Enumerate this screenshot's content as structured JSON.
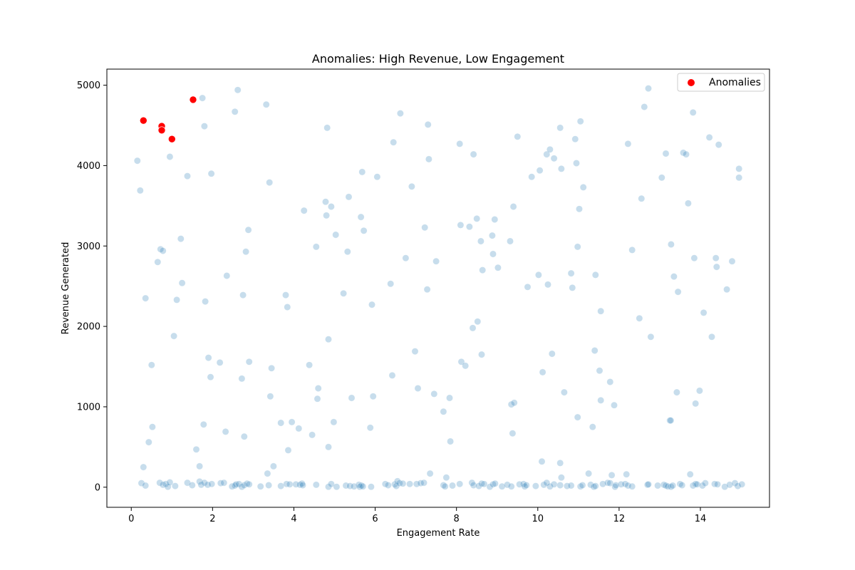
{
  "chart_data": {
    "type": "scatter",
    "title": "Anomalies: High Revenue, Low Engagement",
    "xlabel": "Engagement Rate",
    "ylabel": "Revenue Generated",
    "xlim": [
      -0.6,
      15.7
    ],
    "ylim": [
      -250,
      5200
    ],
    "xticks": [
      0,
      2,
      4,
      6,
      8,
      10,
      12,
      14
    ],
    "yticks": [
      0,
      1000,
      2000,
      3000,
      4000,
      5000
    ],
    "grid": false,
    "legend": {
      "position": "top-right",
      "entries": [
        "Anomalies"
      ]
    },
    "colors": {
      "background_series": "#1f77b4",
      "anomaly_series": "#ff0000"
    },
    "series": [
      {
        "role": "background",
        "opacity": 0.25,
        "points": [
          [
            0.15,
            4060
          ],
          [
            0.22,
            3690
          ],
          [
            0.35,
            2350
          ],
          [
            0.5,
            1520
          ],
          [
            0.52,
            750
          ],
          [
            0.43,
            560
          ],
          [
            0.3,
            250
          ],
          [
            0.65,
            2800
          ],
          [
            0.72,
            2960
          ],
          [
            0.78,
            2940
          ],
          [
            0.95,
            4110
          ],
          [
            1.05,
            1880
          ],
          [
            1.12,
            2330
          ],
          [
            1.22,
            3090
          ],
          [
            1.25,
            2540
          ],
          [
            1.38,
            3870
          ],
          [
            1.6,
            470
          ],
          [
            1.68,
            260
          ],
          [
            1.75,
            4840
          ],
          [
            1.8,
            4490
          ],
          [
            1.78,
            780
          ],
          [
            1.82,
            2310
          ],
          [
            1.9,
            1610
          ],
          [
            1.95,
            1370
          ],
          [
            1.97,
            3900
          ],
          [
            2.18,
            1550
          ],
          [
            2.32,
            690
          ],
          [
            2.35,
            2630
          ],
          [
            2.55,
            4670
          ],
          [
            2.62,
            4940
          ],
          [
            2.72,
            1350
          ],
          [
            2.75,
            2390
          ],
          [
            2.78,
            630
          ],
          [
            2.82,
            2930
          ],
          [
            2.88,
            3200
          ],
          [
            2.9,
            1560
          ],
          [
            3.32,
            4760
          ],
          [
            3.35,
            170
          ],
          [
            3.4,
            3790
          ],
          [
            3.42,
            1130
          ],
          [
            3.45,
            1480
          ],
          [
            3.5,
            260
          ],
          [
            3.68,
            800
          ],
          [
            3.8,
            2390
          ],
          [
            3.84,
            2240
          ],
          [
            3.86,
            460
          ],
          [
            3.95,
            810
          ],
          [
            4.12,
            730
          ],
          [
            4.25,
            3440
          ],
          [
            4.38,
            1520
          ],
          [
            4.45,
            650
          ],
          [
            4.55,
            2990
          ],
          [
            4.58,
            1100
          ],
          [
            4.6,
            1230
          ],
          [
            4.78,
            3550
          ],
          [
            4.8,
            3380
          ],
          [
            4.82,
            4470
          ],
          [
            4.85,
            1840
          ],
          [
            4.85,
            500
          ],
          [
            4.92,
            3490
          ],
          [
            4.98,
            810
          ],
          [
            5.03,
            3140
          ],
          [
            5.22,
            2410
          ],
          [
            5.32,
            2930
          ],
          [
            5.35,
            3610
          ],
          [
            5.42,
            1110
          ],
          [
            5.65,
            3360
          ],
          [
            5.68,
            3920
          ],
          [
            5.72,
            3190
          ],
          [
            5.88,
            740
          ],
          [
            5.92,
            2270
          ],
          [
            5.95,
            1130
          ],
          [
            6.05,
            3860
          ],
          [
            6.38,
            2530
          ],
          [
            6.42,
            1390
          ],
          [
            6.45,
            4290
          ],
          [
            6.62,
            4650
          ],
          [
            6.75,
            2850
          ],
          [
            6.9,
            3740
          ],
          [
            6.98,
            1690
          ],
          [
            7.05,
            1230
          ],
          [
            7.22,
            3230
          ],
          [
            7.28,
            2460
          ],
          [
            7.3,
            4510
          ],
          [
            7.32,
            4080
          ],
          [
            7.35,
            170
          ],
          [
            7.45,
            1160
          ],
          [
            7.5,
            2810
          ],
          [
            7.68,
            940
          ],
          [
            7.75,
            120
          ],
          [
            7.83,
            1110
          ],
          [
            7.85,
            570
          ],
          [
            8.08,
            4270
          ],
          [
            8.1,
            3260
          ],
          [
            8.12,
            1560
          ],
          [
            8.22,
            1510
          ],
          [
            8.32,
            3240
          ],
          [
            8.4,
            1980
          ],
          [
            8.42,
            4140
          ],
          [
            8.5,
            3340
          ],
          [
            8.52,
            2060
          ],
          [
            8.6,
            3060
          ],
          [
            8.62,
            1650
          ],
          [
            8.64,
            2700
          ],
          [
            8.88,
            3130
          ],
          [
            8.9,
            2900
          ],
          [
            8.94,
            3330
          ],
          [
            9.02,
            2730
          ],
          [
            9.32,
            3060
          ],
          [
            9.35,
            1030
          ],
          [
            9.38,
            670
          ],
          [
            9.4,
            3490
          ],
          [
            9.42,
            1050
          ],
          [
            9.5,
            4360
          ],
          [
            9.75,
            2490
          ],
          [
            9.85,
            3860
          ],
          [
            10.02,
            2640
          ],
          [
            10.05,
            3940
          ],
          [
            10.12,
            1430
          ],
          [
            10.22,
            4140
          ],
          [
            10.25,
            2520
          ],
          [
            10.3,
            4200
          ],
          [
            10.35,
            1660
          ],
          [
            10.4,
            4090
          ],
          [
            10.55,
            4470
          ],
          [
            10.58,
            3960
          ],
          [
            10.58,
            120
          ],
          [
            10.55,
            300
          ],
          [
            10.1,
            320
          ],
          [
            10.65,
            1180
          ],
          [
            10.82,
            2660
          ],
          [
            10.85,
            2480
          ],
          [
            10.92,
            4330
          ],
          [
            10.95,
            4030
          ],
          [
            10.98,
            2990
          ],
          [
            10.98,
            870
          ],
          [
            11.02,
            3460
          ],
          [
            11.05,
            4550
          ],
          [
            11.12,
            3730
          ],
          [
            11.25,
            170
          ],
          [
            11.35,
            750
          ],
          [
            11.4,
            1700
          ],
          [
            11.42,
            2640
          ],
          [
            11.52,
            1450
          ],
          [
            11.55,
            2190
          ],
          [
            11.55,
            1080
          ],
          [
            11.78,
            1310
          ],
          [
            11.82,
            150
          ],
          [
            11.88,
            1020
          ],
          [
            12.18,
            160
          ],
          [
            12.22,
            4270
          ],
          [
            12.32,
            2950
          ],
          [
            12.5,
            2100
          ],
          [
            12.55,
            3590
          ],
          [
            12.62,
            4730
          ],
          [
            12.72,
            4960
          ],
          [
            12.78,
            1870
          ],
          [
            13.05,
            3850
          ],
          [
            13.15,
            4150
          ],
          [
            13.25,
            830
          ],
          [
            13.28,
            3020
          ],
          [
            13.35,
            2620
          ],
          [
            13.42,
            1180
          ],
          [
            13.45,
            2430
          ],
          [
            13.58,
            4160
          ],
          [
            13.65,
            4140
          ],
          [
            13.7,
            3530
          ],
          [
            13.75,
            160
          ],
          [
            13.82,
            4660
          ],
          [
            13.85,
            2850
          ],
          [
            13.88,
            1040
          ],
          [
            13.98,
            1200
          ],
          [
            14.08,
            2170
          ],
          [
            14.22,
            4350
          ],
          [
            14.28,
            1870
          ],
          [
            14.38,
            2850
          ],
          [
            14.4,
            2740
          ],
          [
            14.45,
            4260
          ],
          [
            14.65,
            2460
          ],
          [
            14.78,
            2810
          ],
          [
            14.95,
            3960
          ],
          [
            14.95,
            3850
          ],
          [
            13.27,
            830
          ],
          [
            0.25,
            50
          ],
          [
            0.35,
            20
          ],
          [
            0.7,
            55
          ],
          [
            0.78,
            30
          ],
          [
            0.85,
            40
          ],
          [
            0.9,
            5
          ],
          [
            0.95,
            60
          ],
          [
            1.08,
            15
          ],
          [
            1.38,
            55
          ],
          [
            1.5,
            25
          ],
          [
            1.68,
            70
          ],
          [
            1.72,
            30
          ],
          [
            1.8,
            55
          ],
          [
            1.88,
            30
          ],
          [
            1.98,
            40
          ],
          [
            2.2,
            50
          ],
          [
            2.28,
            55
          ],
          [
            2.48,
            10
          ],
          [
            2.55,
            20
          ],
          [
            2.58,
            35
          ],
          [
            2.65,
            40
          ],
          [
            2.72,
            5
          ],
          [
            2.78,
            25
          ],
          [
            2.85,
            45
          ],
          [
            2.9,
            35
          ],
          [
            3.18,
            10
          ],
          [
            3.38,
            25
          ],
          [
            3.68,
            15
          ],
          [
            3.82,
            40
          ],
          [
            3.9,
            35
          ],
          [
            4.05,
            35
          ],
          [
            4.15,
            30
          ],
          [
            4.2,
            45
          ],
          [
            4.22,
            25
          ],
          [
            4.55,
            30
          ],
          [
            4.85,
            5
          ],
          [
            4.92,
            40
          ],
          [
            5.05,
            5
          ],
          [
            5.28,
            20
          ],
          [
            5.38,
            15
          ],
          [
            5.48,
            10
          ],
          [
            5.6,
            30
          ],
          [
            5.62,
            5
          ],
          [
            5.66,
            20
          ],
          [
            5.7,
            10
          ],
          [
            5.9,
            5
          ],
          [
            6.25,
            40
          ],
          [
            6.32,
            25
          ],
          [
            6.48,
            35
          ],
          [
            6.52,
            15
          ],
          [
            6.55,
            75
          ],
          [
            6.6,
            50
          ],
          [
            6.68,
            45
          ],
          [
            6.85,
            40
          ],
          [
            7.02,
            40
          ],
          [
            7.12,
            50
          ],
          [
            7.2,
            55
          ],
          [
            7.68,
            25
          ],
          [
            7.72,
            10
          ],
          [
            7.9,
            20
          ],
          [
            8.08,
            40
          ],
          [
            8.38,
            55
          ],
          [
            8.42,
            25
          ],
          [
            8.55,
            15
          ],
          [
            8.62,
            45
          ],
          [
            8.68,
            40
          ],
          [
            8.82,
            5
          ],
          [
            8.9,
            35
          ],
          [
            8.95,
            45
          ],
          [
            9.12,
            10
          ],
          [
            9.25,
            30
          ],
          [
            9.35,
            10
          ],
          [
            9.55,
            35
          ],
          [
            9.65,
            40
          ],
          [
            9.68,
            10
          ],
          [
            9.72,
            25
          ],
          [
            9.95,
            15
          ],
          [
            10.15,
            30
          ],
          [
            10.22,
            55
          ],
          [
            10.3,
            10
          ],
          [
            10.4,
            35
          ],
          [
            10.55,
            25
          ],
          [
            10.72,
            15
          ],
          [
            10.82,
            20
          ],
          [
            11.05,
            10
          ],
          [
            11.1,
            25
          ],
          [
            11.3,
            30
          ],
          [
            11.38,
            5
          ],
          [
            11.42,
            15
          ],
          [
            11.6,
            40
          ],
          [
            11.72,
            55
          ],
          [
            11.78,
            50
          ],
          [
            11.9,
            5
          ],
          [
            11.92,
            25
          ],
          [
            12.05,
            35
          ],
          [
            12.15,
            40
          ],
          [
            12.22,
            20
          ],
          [
            12.32,
            10
          ],
          [
            12.7,
            30
          ],
          [
            12.72,
            35
          ],
          [
            12.95,
            20
          ],
          [
            13.1,
            30
          ],
          [
            13.15,
            20
          ],
          [
            13.2,
            10
          ],
          [
            13.28,
            5
          ],
          [
            13.32,
            20
          ],
          [
            13.5,
            40
          ],
          [
            13.55,
            25
          ],
          [
            13.82,
            20
          ],
          [
            13.88,
            40
          ],
          [
            13.92,
            35
          ],
          [
            14.05,
            20
          ],
          [
            14.12,
            50
          ],
          [
            14.35,
            40
          ],
          [
            14.42,
            35
          ],
          [
            14.6,
            5
          ],
          [
            14.72,
            30
          ],
          [
            14.85,
            50
          ],
          [
            14.92,
            15
          ],
          [
            15.02,
            35
          ]
        ]
      },
      {
        "name": "Anomalies",
        "role": "anomaly",
        "points": [
          [
            0.3,
            4560
          ],
          [
            0.75,
            4490
          ],
          [
            0.75,
            4440
          ],
          [
            1.0,
            4330
          ],
          [
            1.52,
            4820
          ]
        ]
      }
    ]
  }
}
